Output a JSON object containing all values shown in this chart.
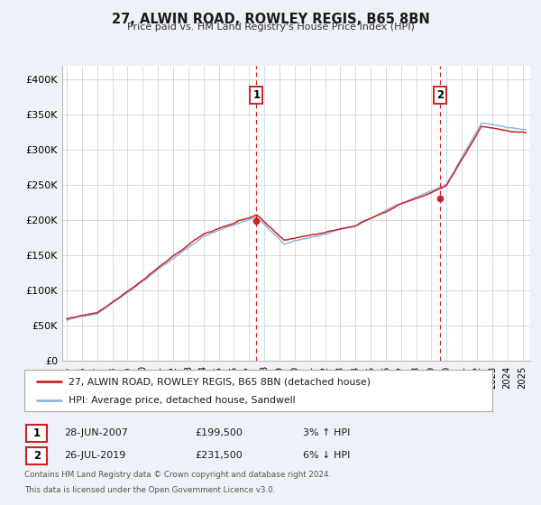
{
  "title": "27, ALWIN ROAD, ROWLEY REGIS, B65 8BN",
  "subtitle": "Price paid vs. HM Land Registry's House Price Index (HPI)",
  "ytick_labels": [
    "£0",
    "£50K",
    "£100K",
    "£150K",
    "£200K",
    "£250K",
    "£300K",
    "£350K",
    "£400K"
  ],
  "yticks": [
    0,
    50000,
    100000,
    150000,
    200000,
    250000,
    300000,
    350000,
    400000
  ],
  "ylim": [
    0,
    420000
  ],
  "xlim": [
    1994.7,
    2025.5
  ],
  "hpi_color": "#90b8e0",
  "price_color": "#cc2222",
  "marker1_date": 2007.487,
  "marker1_price": 199500,
  "marker1_label": "28-JUN-2007",
  "marker1_amount": "£199,500",
  "marker1_pct": "3% ↑ HPI",
  "marker2_date": 2019.558,
  "marker2_price": 231500,
  "marker2_label": "26-JUL-2019",
  "marker2_amount": "£231,500",
  "marker2_pct": "6% ↓ HPI",
  "legend_label1": "27, ALWIN ROAD, ROWLEY REGIS, B65 8BN (detached house)",
  "legend_label2": "HPI: Average price, detached house, Sandwell",
  "footnote1": "Contains HM Land Registry data © Crown copyright and database right 2024.",
  "footnote2": "This data is licensed under the Open Government Licence v3.0.",
  "background_color": "#eef2f8",
  "plot_bg_color": "#ffffff",
  "grid_color": "#ccd4e0"
}
